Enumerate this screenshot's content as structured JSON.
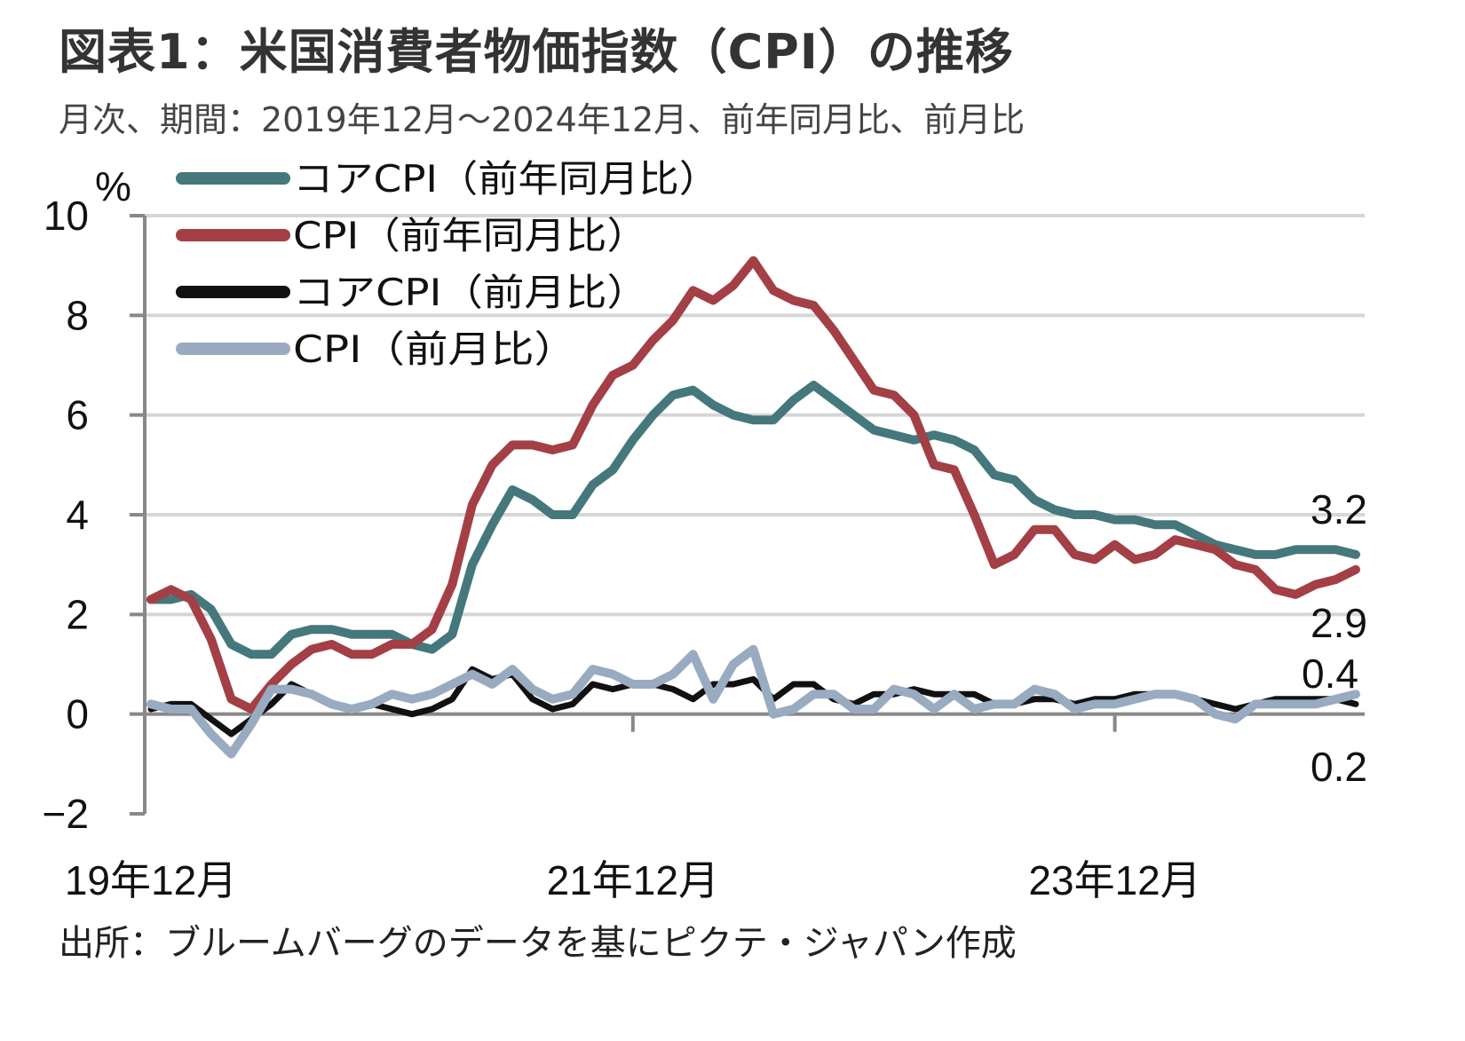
{
  "title": "図表1：米国消費者物価指数（CPI）の推移",
  "subtitle": "月次、期間：2019年12月～2024年12月、前年同月比、前月比",
  "source": "出所：ブルームバーグのデータを基にピクテ・ジャパン作成",
  "chart_data": {
    "type": "line",
    "ylabel": "%",
    "ylim": [
      -2,
      10
    ],
    "yticks": [
      "-2",
      "0",
      "2",
      "4",
      "6",
      "8",
      "10"
    ],
    "xtick_labels": [
      "19年12月",
      "21年12月",
      "23年12月"
    ],
    "grid": true,
    "legend_placement": "top-left",
    "x": [
      "2019-12",
      "2020-01",
      "2020-02",
      "2020-03",
      "2020-04",
      "2020-05",
      "2020-06",
      "2020-07",
      "2020-08",
      "2020-09",
      "2020-10",
      "2020-11",
      "2020-12",
      "2021-01",
      "2021-02",
      "2021-03",
      "2021-04",
      "2021-05",
      "2021-06",
      "2021-07",
      "2021-08",
      "2021-09",
      "2021-10",
      "2021-11",
      "2021-12",
      "2022-01",
      "2022-02",
      "2022-03",
      "2022-04",
      "2022-05",
      "2022-06",
      "2022-07",
      "2022-08",
      "2022-09",
      "2022-10",
      "2022-11",
      "2022-12",
      "2023-01",
      "2023-02",
      "2023-03",
      "2023-04",
      "2023-05",
      "2023-06",
      "2023-07",
      "2023-08",
      "2023-09",
      "2023-10",
      "2023-11",
      "2023-12",
      "2024-01",
      "2024-02",
      "2024-03",
      "2024-04",
      "2024-05",
      "2024-06",
      "2024-07",
      "2024-08",
      "2024-09",
      "2024-10",
      "2024-11",
      "2024-12"
    ],
    "series": [
      {
        "name": "コアCPI（前年同月比）",
        "color": "#44787c",
        "end_label": "3.2",
        "values": [
          2.3,
          2.3,
          2.4,
          2.1,
          1.4,
          1.2,
          1.2,
          1.6,
          1.7,
          1.7,
          1.6,
          1.6,
          1.6,
          1.4,
          1.3,
          1.6,
          3.0,
          3.8,
          4.5,
          4.3,
          4.0,
          4.0,
          4.6,
          4.9,
          5.5,
          6.0,
          6.4,
          6.5,
          6.2,
          6.0,
          5.9,
          5.9,
          6.3,
          6.6,
          6.3,
          6.0,
          5.7,
          5.6,
          5.5,
          5.6,
          5.5,
          5.3,
          4.8,
          4.7,
          4.3,
          4.1,
          4.0,
          4.0,
          3.9,
          3.9,
          3.8,
          3.8,
          3.6,
          3.4,
          3.3,
          3.2,
          3.2,
          3.3,
          3.3,
          3.3,
          3.2
        ]
      },
      {
        "name": "CPI（前年同月比）",
        "color": "#a33f45",
        "end_label": "2.9",
        "values": [
          2.3,
          2.5,
          2.3,
          1.5,
          0.3,
          0.1,
          0.6,
          1.0,
          1.3,
          1.4,
          1.2,
          1.2,
          1.4,
          1.4,
          1.7,
          2.6,
          4.2,
          5.0,
          5.4,
          5.4,
          5.3,
          5.4,
          6.2,
          6.8,
          7.0,
          7.5,
          7.9,
          8.5,
          8.3,
          8.6,
          9.1,
          8.5,
          8.3,
          8.2,
          7.7,
          7.1,
          6.5,
          6.4,
          6.0,
          5.0,
          4.9,
          4.0,
          3.0,
          3.2,
          3.7,
          3.7,
          3.2,
          3.1,
          3.4,
          3.1,
          3.2,
          3.5,
          3.4,
          3.3,
          3.0,
          2.9,
          2.5,
          2.4,
          2.6,
          2.7,
          2.9
        ]
      },
      {
        "name": "コアCPI（前月比）",
        "color": "#111111",
        "end_label": "0.2",
        "values": [
          0.1,
          0.2,
          0.2,
          -0.1,
          -0.4,
          -0.1,
          0.2,
          0.6,
          0.4,
          0.2,
          0.1,
          0.2,
          0.1,
          0.0,
          0.1,
          0.3,
          0.9,
          0.7,
          0.8,
          0.3,
          0.1,
          0.2,
          0.6,
          0.5,
          0.6,
          0.6,
          0.5,
          0.3,
          0.6,
          0.6,
          0.7,
          0.3,
          0.6,
          0.6,
          0.3,
          0.2,
          0.4,
          0.4,
          0.5,
          0.4,
          0.4,
          0.4,
          0.2,
          0.2,
          0.3,
          0.3,
          0.2,
          0.3,
          0.3,
          0.4,
          0.4,
          0.4,
          0.3,
          0.2,
          0.1,
          0.2,
          0.3,
          0.3,
          0.3,
          0.3,
          0.2
        ]
      },
      {
        "name": "CPI（前月比）",
        "color": "#98abc0",
        "end_label": "0.4",
        "values": [
          0.2,
          0.1,
          0.1,
          -0.4,
          -0.8,
          -0.2,
          0.5,
          0.5,
          0.4,
          0.2,
          0.1,
          0.2,
          0.4,
          0.3,
          0.4,
          0.6,
          0.8,
          0.6,
          0.9,
          0.5,
          0.3,
          0.4,
          0.9,
          0.8,
          0.6,
          0.6,
          0.8,
          1.2,
          0.3,
          1.0,
          1.3,
          0.0,
          0.1,
          0.4,
          0.4,
          0.1,
          0.1,
          0.5,
          0.4,
          0.1,
          0.4,
          0.1,
          0.2,
          0.2,
          0.5,
          0.4,
          0.1,
          0.2,
          0.2,
          0.3,
          0.4,
          0.4,
          0.3,
          0.0,
          -0.1,
          0.2,
          0.2,
          0.2,
          0.2,
          0.3,
          0.4
        ]
      }
    ]
  }
}
